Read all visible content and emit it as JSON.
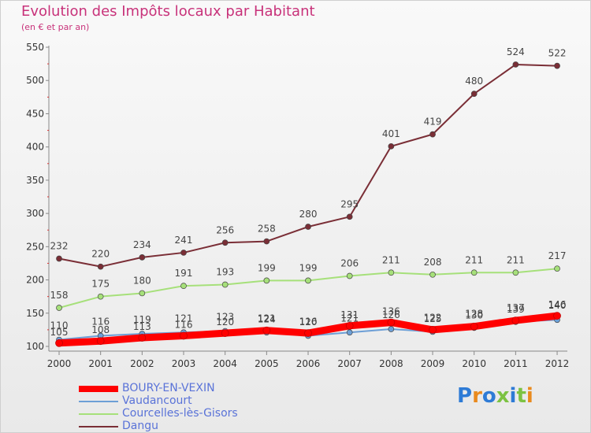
{
  "title": "Evolution des Impôts locaux par Habitant",
  "subtitle": "(en € et par an)",
  "logo_text": "Proxiti",
  "chart_data": {
    "type": "line",
    "title": "Evolution des Impôts locaux par Habitant",
    "subtitle": "(en € et par an)",
    "xlabel": "",
    "ylabel": "",
    "categories": [
      "2000",
      "2001",
      "2002",
      "2003",
      "2004",
      "2005",
      "2006",
      "2007",
      "2008",
      "2009",
      "2010",
      "2011",
      "2012"
    ],
    "ylim": [
      100,
      550
    ],
    "yticks": [
      100,
      150,
      200,
      250,
      300,
      350,
      400,
      450,
      500,
      550
    ],
    "grid": false,
    "legend_position": "bottom-left",
    "series": [
      {
        "name": "BOURY-EN-VEXIN",
        "color": "#ff0000",
        "values": [
          105,
          108,
          113,
          116,
          120,
          124,
          120,
          131,
          136,
          125,
          130,
          139,
          146
        ]
      },
      {
        "name": "Vaudancourt",
        "color": "#6d9fd6",
        "values": [
          110,
          116,
          119,
          121,
          123,
          121,
          116,
          121,
          126,
          122,
          128,
          137,
          140
        ]
      },
      {
        "name": "Courcelles-lès-Gisors",
        "color": "#a6e07a",
        "values": [
          158,
          175,
          180,
          191,
          193,
          199,
          199,
          206,
          211,
          208,
          211,
          211,
          217
        ]
      },
      {
        "name": "Dangu",
        "color": "#7a2e36",
        "values": [
          232,
          220,
          234,
          241,
          256,
          258,
          280,
          295,
          401,
          419,
          480,
          524,
          522
        ]
      }
    ]
  }
}
